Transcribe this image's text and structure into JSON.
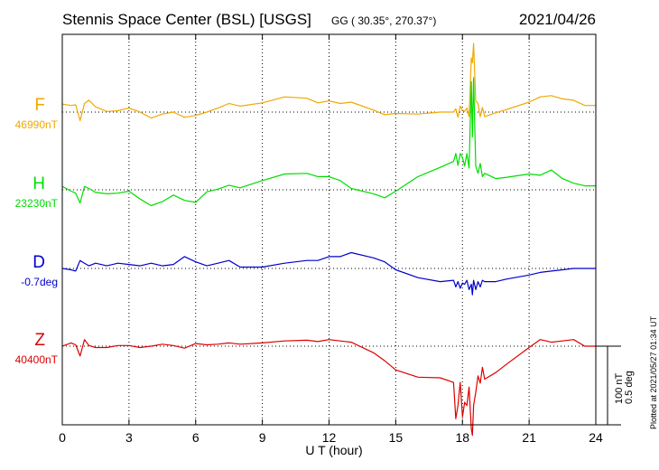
{
  "header": {
    "station": "Stennis Space Center (BSL)  [USGS]",
    "coords": "GG ( 30.35°, 270.37°)",
    "date": "2021/04/26"
  },
  "footer": {
    "scale_nt": "100 nT",
    "scale_deg": "0.5 deg",
    "plotted": "Plotted at 2021/05/27 01:34 UT"
  },
  "colors": {
    "F": "#f0a800",
    "H": "#00dd00",
    "D": "#0000cc",
    "Z": "#dd0000"
  },
  "chart_data": {
    "type": "line",
    "title": "Stennis Space Center (BSL)  [USGS]",
    "xlabel": "U T (hour)",
    "xlim": [
      0,
      24
    ],
    "xticks": [
      0,
      3,
      6,
      9,
      12,
      15,
      18,
      21,
      24
    ],
    "grid": true,
    "scale": "100 nT / 0.5 deg per bar",
    "series": [
      {
        "name": "F",
        "baseline_label": "46990nT",
        "baseline": 46990,
        "unit": "nT",
        "x": [
          0,
          0.4,
          0.6,
          0.8,
          1.0,
          1.2,
          1.5,
          2.0,
          2.5,
          3.0,
          3.5,
          4.0,
          4.5,
          5.0,
          5.5,
          6.0,
          6.5,
          7.0,
          7.5,
          8.0,
          9.0,
          10.0,
          11.0,
          11.5,
          12.0,
          12.5,
          13.0,
          14.0,
          14.5,
          15.0,
          16.0,
          17.0,
          17.6,
          17.7,
          17.8,
          17.9,
          18.0,
          18.1,
          18.2,
          18.3,
          18.4,
          18.45,
          18.5,
          18.6,
          18.7,
          18.8,
          18.9,
          19.0,
          19.5,
          20.0,
          21.0,
          21.5,
          22.0,
          22.5,
          23.0,
          23.5,
          24.0
        ],
        "values": [
          47002,
          47000,
          47001,
          46977,
          47003,
          47008,
          46998,
          46991,
          46992,
          46996,
          46990,
          46981,
          46987,
          46990,
          46982,
          46985,
          46990,
          46996,
          47003,
          46999,
          47004,
          47013,
          47011,
          47004,
          47007,
          47003,
          47005,
          46993,
          46986,
          46988,
          46987,
          46990,
          46990,
          46995,
          46982,
          46999,
          46993,
          46991,
          46996,
          46983,
          47072,
          47065,
          47094,
          47007,
          47003,
          46983,
          46997,
          46983,
          46989,
          46994,
          47005,
          47013,
          47015,
          47010,
          47008,
          47000,
          47000
        ]
      },
      {
        "name": "H",
        "baseline_label": "23230nT",
        "baseline": 23230,
        "unit": "nT",
        "x": [
          0,
          0.4,
          0.6,
          0.8,
          1.0,
          1.2,
          1.5,
          2.0,
          2.5,
          3.0,
          3.5,
          4.0,
          4.5,
          5.0,
          5.5,
          6.0,
          6.5,
          7.0,
          7.5,
          8.0,
          9.0,
          10.0,
          11.0,
          11.5,
          12.0,
          12.5,
          13.0,
          14.0,
          14.5,
          15.0,
          16.0,
          17.0,
          17.6,
          17.7,
          17.8,
          17.9,
          18.0,
          18.1,
          18.2,
          18.3,
          18.4,
          18.45,
          18.5,
          18.6,
          18.7,
          18.8,
          18.9,
          19.0,
          19.5,
          20.0,
          21.0,
          21.5,
          22.0,
          22.5,
          23.0,
          23.5,
          24.0
        ],
        "values": [
          23235,
          23228,
          23225,
          23210,
          23235,
          23232,
          23226,
          23224,
          23225,
          23228,
          23216,
          23206,
          23212,
          23222,
          23214,
          23211,
          23227,
          23231,
          23237,
          23233,
          23244,
          23254,
          23255,
          23250,
          23250,
          23244,
          23232,
          23224,
          23218,
          23228,
          23250,
          23264,
          23273,
          23285,
          23267,
          23285,
          23279,
          23266,
          23285,
          23263,
          23394,
          23310,
          23400,
          23266,
          23255,
          23270,
          23250,
          23255,
          23247,
          23249,
          23254,
          23252,
          23260,
          23247,
          23240,
          23236,
          23236
        ]
      },
      {
        "name": "D",
        "baseline_label": "-0.7deg",
        "baseline": -0.7,
        "unit": "deg",
        "x": [
          0,
          0.4,
          0.6,
          0.8,
          1.0,
          1.2,
          1.5,
          2.0,
          2.5,
          3.0,
          3.5,
          4.0,
          4.5,
          5.0,
          5.5,
          6.0,
          6.5,
          7.0,
          7.5,
          8.0,
          9.0,
          10.0,
          11.0,
          11.5,
          12.0,
          12.5,
          13.0,
          14.0,
          14.5,
          15.0,
          16.0,
          17.0,
          17.6,
          17.7,
          17.8,
          17.9,
          18.0,
          18.1,
          18.2,
          18.3,
          18.4,
          18.45,
          18.5,
          18.6,
          18.7,
          18.8,
          18.9,
          19.0,
          19.5,
          20.0,
          21.0,
          21.5,
          22.0,
          22.5,
          23.0,
          23.5,
          24.0
        ],
        "values": [
          -0.7,
          -0.71,
          -0.72,
          -0.64,
          -0.66,
          -0.68,
          -0.66,
          -0.68,
          -0.66,
          -0.67,
          -0.68,
          -0.66,
          -0.68,
          -0.67,
          -0.61,
          -0.65,
          -0.68,
          -0.66,
          -0.64,
          -0.69,
          -0.69,
          -0.66,
          -0.64,
          -0.64,
          -0.61,
          -0.61,
          -0.58,
          -0.62,
          -0.65,
          -0.71,
          -0.77,
          -0.8,
          -0.79,
          -0.84,
          -0.8,
          -0.85,
          -0.81,
          -0.82,
          -0.79,
          -0.86,
          -0.82,
          -0.9,
          -0.79,
          -0.86,
          -0.8,
          -0.84,
          -0.79,
          -0.8,
          -0.8,
          -0.78,
          -0.75,
          -0.73,
          -0.72,
          -0.71,
          -0.7,
          -0.7,
          -0.7
        ]
      },
      {
        "name": "Z",
        "baseline_label": "40400nT",
        "baseline": 40400,
        "unit": "nT",
        "x": [
          0,
          0.4,
          0.6,
          0.8,
          1.0,
          1.2,
          1.5,
          2.0,
          2.5,
          3.0,
          3.5,
          4.0,
          4.5,
          5.0,
          5.5,
          6.0,
          6.5,
          7.0,
          7.5,
          8.0,
          9.0,
          10.0,
          11.0,
          11.5,
          12.0,
          12.5,
          13.0,
          14.0,
          14.5,
          15.0,
          16.0,
          17.0,
          17.6,
          17.7,
          17.8,
          17.9,
          18.0,
          18.1,
          18.2,
          18.3,
          18.4,
          18.45,
          18.5,
          18.6,
          18.7,
          18.8,
          18.9,
          19.0,
          19.5,
          20.0,
          21.0,
          21.5,
          22.0,
          22.5,
          23.0,
          23.5,
          24.0
        ],
        "values": [
          40400,
          40405,
          40402,
          40385,
          40410,
          40401,
          40398,
          40398,
          40401,
          40401,
          40398,
          40400,
          40403,
          40401,
          40397,
          40404,
          40402,
          40403,
          40405,
          40403,
          40405,
          40408,
          40409,
          40407,
          40410,
          40408,
          40406,
          40390,
          40378,
          40364,
          40353,
          40352,
          40345,
          40290,
          40310,
          40345,
          40293,
          40315,
          40310,
          40338,
          40275,
          40265,
          40310,
          40330,
          40355,
          40344,
          40368,
          40350,
          40360,
          40373,
          40398,
          40410,
          40406,
          40408,
          40410,
          40400,
          40400
        ]
      }
    ]
  }
}
